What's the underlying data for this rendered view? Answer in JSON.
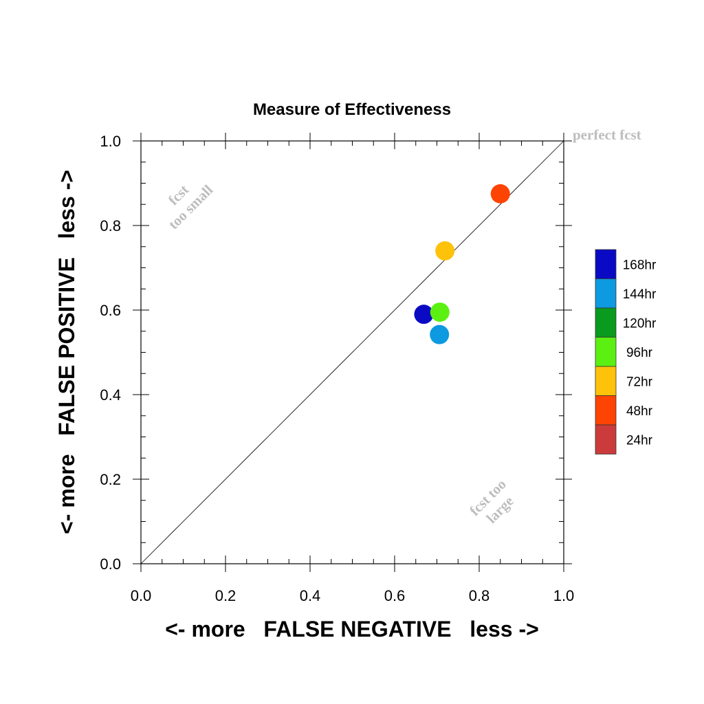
{
  "chart_data": {
    "type": "scatter",
    "title": "Measure of Effectiveness",
    "xlabel": "<- more   FALSE NEGATIVE   less ->",
    "ylabel": "<- more   FALSE POSITIVE   less ->",
    "xlim": [
      0,
      1
    ],
    "ylim": [
      0,
      1
    ],
    "x_ticks": [
      "0.0",
      "0.2",
      "0.4",
      "0.6",
      "0.8",
      "1.0"
    ],
    "y_ticks": [
      "0.0",
      "0.2",
      "0.4",
      "0.6",
      "0.8",
      "1.0"
    ],
    "grid": false,
    "diagonal_line": true,
    "annotations": {
      "perfect": "perfect fcst",
      "small_line1": "fcst",
      "small_line2": "too small",
      "large_line1": "fcst too",
      "large_line2": "large"
    },
    "legend_position": "right",
    "series": [
      {
        "name": "168hr",
        "color": "#0a0ac4",
        "x": 0.669,
        "y": 0.59
      },
      {
        "name": "144hr",
        "color": "#0d9ae0",
        "x": 0.706,
        "y": 0.542
      },
      {
        "name": "120hr",
        "color": "#0a9a1e",
        "x": null,
        "y": null
      },
      {
        "name": "96hr",
        "color": "#5cf012",
        "x": 0.707,
        "y": 0.595
      },
      {
        "name": "72hr",
        "color": "#fec20a",
        "x": 0.719,
        "y": 0.74
      },
      {
        "name": "48hr",
        "color": "#fe4402",
        "x": 0.85,
        "y": 0.875
      },
      {
        "name": "24hr",
        "color": "#cc3b3b",
        "x": null,
        "y": null
      }
    ]
  }
}
